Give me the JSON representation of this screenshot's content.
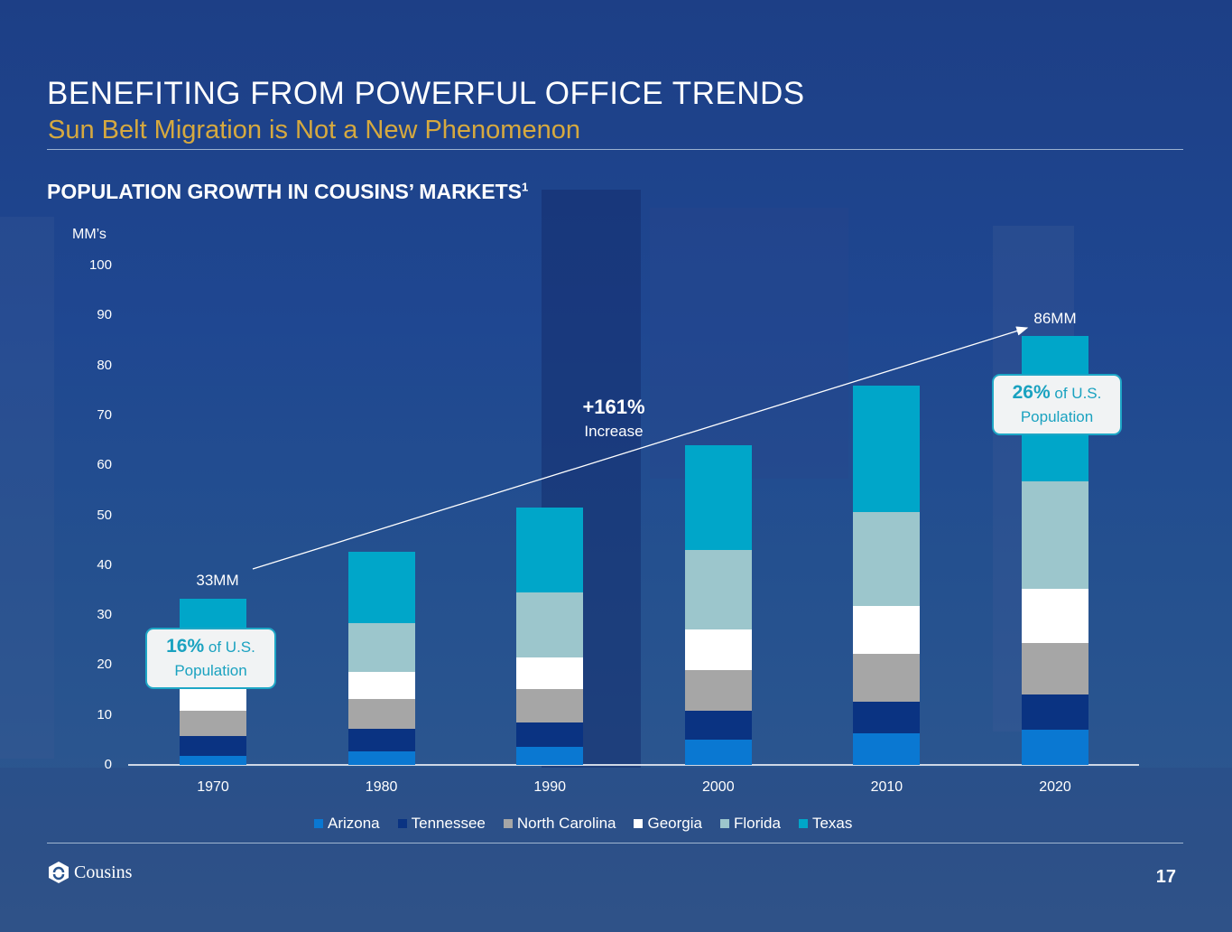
{
  "header": {
    "title": "BENEFITING FROM POWERFUL OFFICE TRENDS",
    "subtitle": "Sun Belt Migration is Not a New Phenomenon"
  },
  "section_title": "POPULATION GROWTH IN COUSINS’ MARKETS",
  "section_footnote": "1",
  "chart_data": {
    "type": "bar",
    "stacked": true,
    "title": "POPULATION GROWTH IN COUSINS’ MARKETS",
    "ylabel": "MM’s",
    "xlabel": "",
    "ylim": [
      0,
      100
    ],
    "yticks": [
      0,
      10,
      20,
      30,
      40,
      50,
      60,
      70,
      80,
      90,
      100
    ],
    "categories": [
      "1970",
      "1980",
      "1990",
      "2000",
      "2010",
      "2020"
    ],
    "series": [
      {
        "name": "Arizona",
        "color": "#0a78d2",
        "values": [
          1.8,
          2.7,
          3.6,
          5.1,
          6.4,
          7.1
        ]
      },
      {
        "name": "Tennessee",
        "color": "#0a3382",
        "values": [
          3.9,
          4.6,
          4.9,
          5.7,
          6.3,
          7.0
        ]
      },
      {
        "name": "North Carolina",
        "color": "#a6a6a6",
        "values": [
          5.1,
          5.9,
          6.6,
          8.1,
          9.6,
          10.4
        ]
      },
      {
        "name": "Georgia",
        "color": "#ffffff",
        "values": [
          4.6,
          5.4,
          6.5,
          8.2,
          9.6,
          10.7
        ]
      },
      {
        "name": "Florida",
        "color": "#9cc6cc",
        "values": [
          6.8,
          9.8,
          13.0,
          15.9,
          18.8,
          21.6
        ]
      },
      {
        "name": "Texas",
        "color": "#00a6c9",
        "values": [
          11.1,
          14.2,
          16.9,
          21.0,
          25.2,
          29.1
        ]
      }
    ],
    "legend_position": "bottom",
    "grid": false,
    "annotations": {
      "start_total": "33MM",
      "end_total": "86MM",
      "increase_pct": "+161%",
      "increase_label": "Increase",
      "start_share_pct": "16%",
      "end_share_pct": "26%",
      "share_suffix": "of U.S.",
      "share_label": "Population"
    }
  },
  "footer": {
    "logo_text": "Cousins",
    "page_number": "17"
  }
}
